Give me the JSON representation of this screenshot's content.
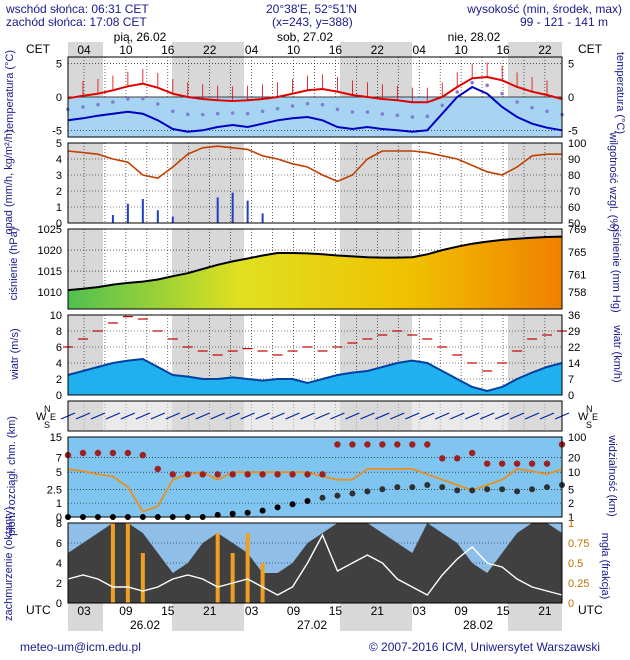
{
  "header": {
    "sunrise": "wschód słońca: 06:31 CET",
    "sunset": "zachód słońca: 17:08 CET",
    "coords": "20°38'E, 52°51'N",
    "grid": "(x=243, y=388)",
    "height_label": "wysokość (min, środek, max)",
    "height_values": "99 - 121 - 141 m"
  },
  "timeline": {
    "tz_top": "CET",
    "tz_bottom": "UTC",
    "days_top": [
      "pią, 26.02",
      "sob, 27.02",
      "nie, 28.02"
    ],
    "hours_top": [
      "04",
      "10",
      "16",
      "22",
      "04",
      "10",
      "16",
      "22",
      "04",
      "10",
      "16",
      "22"
    ],
    "hours_bottom": [
      "03",
      "09",
      "15",
      "21",
      "03",
      "09",
      "15",
      "21",
      "03",
      "09",
      "15",
      "21"
    ],
    "days_bottom": [
      "26.02",
      "27.02",
      "28.02"
    ]
  },
  "panels": {
    "temp": {
      "left": "temperatura (°C)",
      "right": "temperatura (°C)"
    },
    "precip": {
      "left": "opad (mm/h, kg/m²/h)",
      "right": "wilgotność wzgl. (%)"
    },
    "pressure": {
      "left": "ciśnienie (hPa)",
      "right": "ciśnienie (mm Hg)"
    },
    "wind": {
      "left": "wiatr (m/s)",
      "right": "wiatr (km/h)"
    },
    "winddir": {
      "compass": "N W E S"
    },
    "vis": {
      "left": "pion. rozciągł. chm. (km)",
      "right": "widzialność (km)"
    },
    "cloud": {
      "left": "zachmurzenie (oktanty)",
      "right": "mgła (frakcja)"
    }
  },
  "footer": {
    "email": "meteo-um@icm.edu.pl",
    "copyright": "© 2007-2016 ICM, Uniwersytet Warszawski"
  },
  "colors": {
    "label": "#1a1a8c",
    "temp_red": "#e00000",
    "temp_blue": "#0000c0",
    "band_gray": "#d8d8d8",
    "humidity": "#c04000",
    "wind_fill": "#0060c8",
    "vis_orange": "#e89020",
    "cloud_dark": "#404040"
  },
  "chart_data": [
    {
      "type": "line",
      "title": "temperatura",
      "ylabel": "temperatura (°C)",
      "ylim": [
        -6,
        6
      ],
      "yticks_left": [
        5,
        0,
        -5
      ],
      "yticks_right": [
        5,
        0,
        -5
      ],
      "series": [
        {
          "values": [
            -0.2,
            0.2,
            0.5,
            1.0,
            1.6,
            2.0,
            1.4,
            0.5,
            0,
            -0.3,
            -0.5,
            -0.6,
            -0.5,
            -0.3,
            0,
            0.5,
            1.0,
            1.2,
            0.8,
            0.3,
            0,
            -0.3,
            -0.5,
            -0.8,
            -0.8,
            0,
            1.5,
            2.8,
            3.0,
            2.5,
            1.5,
            0.8,
            0.3,
            -0.3
          ]
        },
        {
          "values": [
            -3.5,
            -3.2,
            -2.8,
            -2.5,
            -2.2,
            -2.5,
            -3.5,
            -4.8,
            -5.2,
            -5,
            -4.5,
            -4.2,
            -4.5,
            -4.0,
            -3.5,
            -3.2,
            -3.0,
            -3.5,
            -4.5,
            -4.8,
            -4.5,
            -4.8,
            -5.0,
            -5.2,
            -5.0,
            -2.5,
            0,
            1.5,
            0.5,
            -1.5,
            -3.0,
            -4.0,
            -4.6,
            -5.0
          ]
        }
      ]
    },
    {
      "type": "bar",
      "title": "opad / wilgotność",
      "ylabel": "opad (mm/h, kg/m²/h)",
      "ylim": [
        0,
        5
      ],
      "yticks_left": [
        5,
        4,
        3,
        2,
        1,
        0
      ],
      "yticks_right": [
        100,
        90,
        80,
        70,
        60,
        50
      ],
      "series": [
        {
          "values": [
            0,
            0,
            0,
            0.5,
            1.2,
            1.5,
            0.8,
            0.4,
            0,
            0,
            1.6,
            1.9,
            1.4,
            0.6,
            0,
            0,
            0,
            0,
            0,
            0,
            0,
            0,
            0,
            0,
            0,
            0,
            0,
            0,
            0,
            0,
            0,
            0,
            0,
            0
          ]
        },
        {
          "values": [
            95,
            94,
            93,
            90,
            88,
            80,
            78,
            85,
            93,
            97,
            98,
            97,
            96,
            92,
            90,
            87,
            85,
            80,
            76,
            80,
            90,
            95,
            95,
            95,
            94,
            92,
            90,
            86,
            82,
            80,
            85,
            92,
            93,
            93
          ]
        }
      ]
    },
    {
      "type": "area",
      "title": "ciśnienie",
      "ylabel": "ciśnienie (hPa)",
      "ylim": [
        1006,
        1025
      ],
      "yticks_left": [
        1025,
        1020,
        1015,
        1010
      ],
      "yticks_right": [
        769,
        765,
        761,
        758
      ],
      "series": [
        {
          "values": [
            1010.5,
            1010.8,
            1011.2,
            1011.8,
            1012.2,
            1012.5,
            1013,
            1013.8,
            1014.5,
            1015.5,
            1016.5,
            1017.3,
            1018,
            1018.7,
            1019.3,
            1019.3,
            1019.2,
            1019,
            1018.7,
            1018.5,
            1018.3,
            1018.2,
            1018.2,
            1018.3,
            1019,
            1020,
            1020.8,
            1021.5,
            1022,
            1022.4,
            1022.7,
            1022.9,
            1023.1,
            1023.2
          ]
        }
      ]
    },
    {
      "type": "line",
      "title": "wiatr",
      "ylabel": "wiatr (m/s)",
      "ylim": [
        0,
        10
      ],
      "yticks_left": [
        10,
        8,
        6,
        4,
        2,
        0
      ],
      "yticks_right": [
        36,
        29,
        22,
        14,
        7,
        0
      ],
      "series": [
        {
          "values": [
            2.5,
            3.0,
            3.5,
            4.0,
            4.3,
            4.5,
            3.5,
            2.5,
            2.3,
            2.0,
            2.0,
            2.2,
            2.0,
            1.8,
            2.0,
            2.0,
            1.5,
            2.0,
            2.5,
            2.8,
            3.0,
            3.5,
            4.0,
            4.3,
            4.0,
            3.0,
            2.0,
            1.0,
            0.5,
            1.0,
            2.0,
            2.8,
            3.5,
            4.0
          ]
        },
        {
          "values": [
            6,
            7,
            8,
            9,
            9.8,
            9.5,
            8,
            7,
            6,
            5.5,
            5,
            5.5,
            5.8,
            5.5,
            5,
            5.5,
            6,
            5.5,
            6,
            6.5,
            7,
            7.5,
            8,
            7.5,
            7,
            6,
            5,
            4,
            3,
            4,
            5.5,
            7,
            7.5,
            8
          ]
        }
      ]
    },
    {
      "type": "scatter",
      "title": "pion. rozciągł. chm. / widzialność",
      "ylabel": "pion. rozciągł. chm. (km)",
      "ylim": [
        0,
        15
      ],
      "yticks_left": [
        15.0,
        7.0,
        5.0,
        2.5,
        1.0,
        0.0
      ],
      "yticks_right": [
        100,
        20,
        10,
        5,
        2,
        1
      ],
      "series": [
        {
          "values": [
            4.5,
            4.3,
            4.0,
            3.8,
            2.8,
            0.5,
            1.0,
            3.5,
            4.0,
            4.2,
            3.5,
            4.2,
            4.2,
            4.2,
            4.2,
            4.2,
            4.2,
            3.8,
            3.5,
            3.5,
            4.5,
            4.5,
            4.5,
            4.5,
            4.0,
            3.5,
            3.0,
            2.5,
            3.0,
            3.5,
            4.5,
            4.3,
            4.0,
            4.5
          ]
        },
        {
          "values": [
            5.8,
            6.0,
            6.0,
            6.0,
            6.0,
            5.8,
            4.5,
            4.0,
            4.0,
            4.0,
            4.0,
            4.0,
            4.0,
            4.0,
            4.0,
            4.0,
            4.0,
            4.0,
            6.8,
            6.8,
            6.8,
            6.8,
            6.8,
            6.8,
            6.8,
            5.5,
            5.5,
            6.0,
            5.0,
            5.0,
            5.0,
            5.0,
            5.0,
            6.8
          ]
        },
        {
          "values": [
            0,
            0,
            0,
            0,
            0,
            0,
            0,
            0,
            0,
            0,
            0.2,
            0.3,
            0.4,
            0.6,
            0.9,
            1.2,
            1.5,
            1.8,
            2.0,
            2.2,
            2.4,
            2.6,
            2.8,
            2.8,
            3.0,
            2.8,
            2.5,
            2.5,
            2.6,
            2.6,
            2.4,
            2.6,
            2.8,
            3.0
          ]
        }
      ]
    },
    {
      "type": "area",
      "title": "zachmurzenie / mgła",
      "ylabel": "zachmurzenie (oktanty)",
      "ylim": [
        0,
        8
      ],
      "yticks_left": [
        8,
        6,
        4,
        2,
        0
      ],
      "yticks_right": [
        1,
        0.75,
        0.5,
        0.25,
        0
      ],
      "series": [
        {
          "values": [
            5,
            6,
            7,
            8,
            8,
            7,
            5,
            3,
            4,
            6,
            7,
            6,
            5,
            3,
            3,
            4,
            6,
            7,
            8,
            8,
            8,
            7,
            6,
            5,
            8,
            7,
            6,
            4,
            3,
            5,
            7,
            8,
            8,
            7
          ]
        },
        {
          "values": [
            0,
            0,
            0,
            8,
            8,
            5,
            0,
            0,
            0,
            0,
            7,
            5,
            7,
            4,
            0,
            0,
            0,
            0,
            0,
            0,
            0,
            0,
            0,
            0,
            0,
            0,
            0,
            0,
            0,
            0,
            0,
            0,
            0,
            0
          ]
        },
        {
          "values": [
            0.3,
            0.35,
            0.3,
            0.2,
            0.2,
            0.15,
            0.2,
            0.3,
            0.35,
            0.3,
            0.2,
            0.25,
            0.3,
            0.2,
            0.1,
            0.2,
            0.5,
            0.85,
            0.4,
            0.5,
            0.6,
            0.5,
            0.3,
            0.2,
            0.1,
            0.35,
            0.55,
            0.7,
            0.5,
            0.45,
            0.3,
            0.2,
            0.15,
            0.1
          ]
        }
      ]
    }
  ]
}
